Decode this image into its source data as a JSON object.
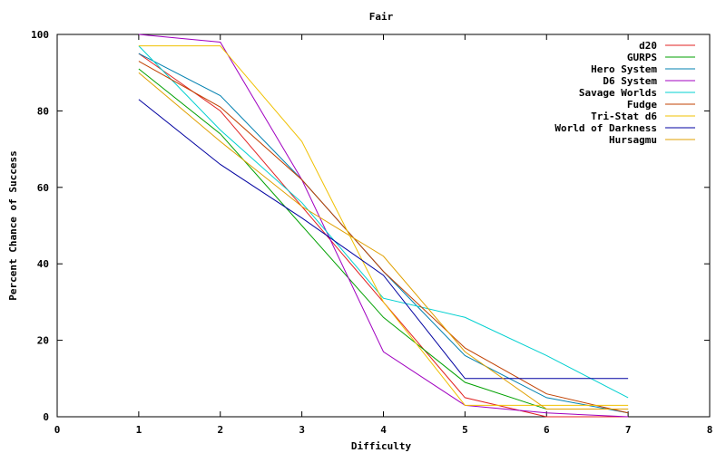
{
  "chart_data": {
    "type": "line",
    "title": "Fair",
    "xlabel": "Difficulty",
    "ylabel": "Percent Chance of Success",
    "xlim": [
      0,
      8
    ],
    "ylim": [
      0,
      100
    ],
    "x_ticks": [
      0,
      1,
      2,
      3,
      4,
      5,
      6,
      7,
      8
    ],
    "y_ticks": [
      0,
      20,
      40,
      60,
      80,
      100
    ],
    "grid": false,
    "legend_position": "top-right",
    "series": [
      {
        "name": "d20",
        "color": "#e02020",
        "x": [
          1,
          2,
          3,
          4,
          5,
          6,
          7
        ],
        "y": [
          95,
          80,
          55,
          30,
          5,
          0,
          0
        ]
      },
      {
        "name": "GURPS",
        "color": "#00a000",
        "x": [
          1,
          2,
          3,
          4,
          5,
          6,
          7
        ],
        "y": [
          91,
          74,
          50,
          26,
          9,
          2,
          2
        ]
      },
      {
        "name": "Hero System",
        "color": "#0080b0",
        "x": [
          1,
          2,
          3,
          4,
          5,
          6,
          7
        ],
        "y": [
          95,
          84,
          62,
          38,
          16,
          5,
          1
        ]
      },
      {
        "name": "D6 System",
        "color": "#a000c0",
        "x": [
          1,
          2,
          3,
          4,
          5,
          6,
          7
        ],
        "y": [
          100,
          98,
          62,
          17,
          3,
          1,
          0
        ]
      },
      {
        "name": "Savage Worlds",
        "color": "#00d0d0",
        "x": [
          1,
          2,
          3,
          4,
          5,
          6,
          7
        ],
        "y": [
          97,
          75,
          56,
          31,
          26,
          16,
          5
        ]
      },
      {
        "name": "Fudge",
        "color": "#c04000",
        "x": [
          1,
          2,
          3,
          4,
          5,
          6,
          7
        ],
        "y": [
          93,
          81,
          62,
          38,
          18,
          6,
          1
        ]
      },
      {
        "name": "Tri-Stat d6",
        "color": "#f0c000",
        "x": [
          1,
          2,
          3,
          4,
          5,
          6,
          7
        ],
        "y": [
          97,
          97,
          72,
          30,
          3,
          3,
          3
        ]
      },
      {
        "name": "World of Darkness",
        "color": "#0000a0",
        "x": [
          1,
          2,
          3,
          4,
          5,
          6,
          7
        ],
        "y": [
          83,
          66,
          52,
          37,
          10,
          10,
          10
        ]
      },
      {
        "name": "Hursagmu",
        "color": "#e0a000",
        "x": [
          1,
          2,
          3,
          4,
          5,
          6,
          7
        ],
        "y": [
          90,
          72,
          55,
          42,
          17,
          2,
          2
        ]
      }
    ]
  }
}
